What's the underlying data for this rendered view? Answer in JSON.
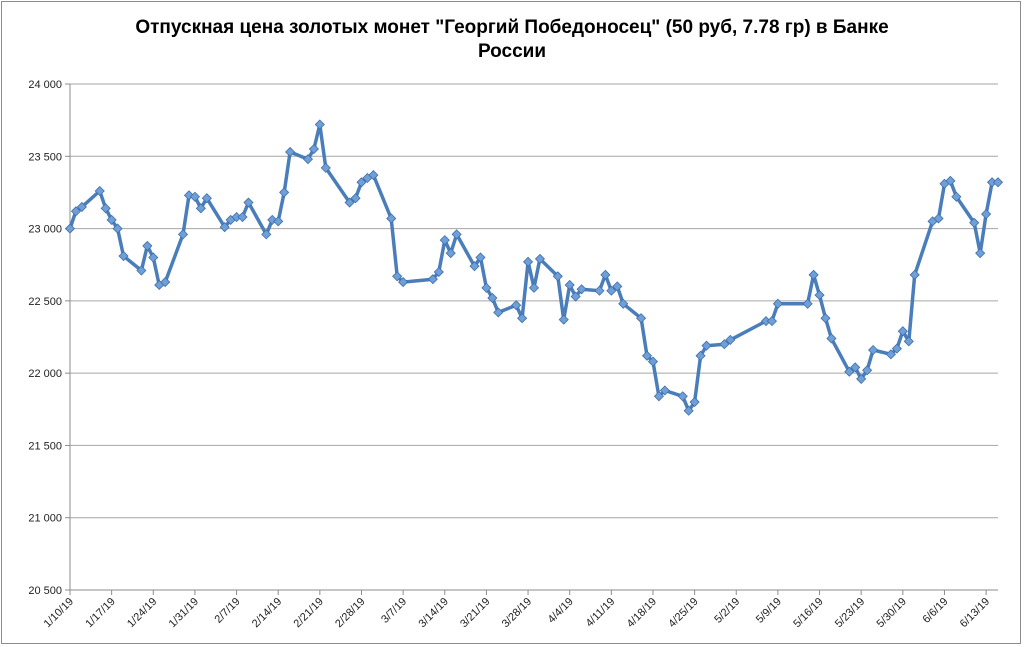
{
  "chart_data": {
    "type": "line",
    "title": "Отпускная цена золотых монет \"Георгий Победоносец\" (50 руб, 7.78 гр) в Банке России",
    "xlabel": "",
    "ylabel": "",
    "ylim": [
      20500,
      24000
    ],
    "yticks": [
      "20 500",
      "21 000",
      "21 500",
      "22 000",
      "22 500",
      "23 000",
      "23 500",
      "24 000"
    ],
    "yticks_values": [
      20500,
      21000,
      21500,
      22000,
      22500,
      23000,
      23500,
      24000
    ],
    "xticks": [
      "1/10/19",
      "1/17/19",
      "1/24/19",
      "1/31/19",
      "2/7/19",
      "2/14/19",
      "2/21/19",
      "2/28/19",
      "3/7/19",
      "3/14/19",
      "3/21/19",
      "3/28/19",
      "4/4/19",
      "4/11/19",
      "4/18/19",
      "4/25/19",
      "5/2/19",
      "5/9/19",
      "5/16/19",
      "5/23/19",
      "5/30/19",
      "6/6/19",
      "6/13/19"
    ],
    "grid": "horizontal",
    "legend": "none",
    "line_color": "#4a7ebb",
    "marker": "diamond",
    "marker_color": "#6f9fd8",
    "x_start": "1/10/19",
    "x_end": "6/15/19",
    "series": [
      {
        "name": "",
        "x": [
          "1/10/19",
          "1/11/19",
          "1/12/19",
          "1/15/19",
          "1/16/19",
          "1/17/19",
          "1/18/19",
          "1/19/19",
          "1/22/19",
          "1/23/19",
          "1/24/19",
          "1/25/19",
          "1/26/19",
          "1/29/19",
          "1/30/19",
          "1/31/19",
          "2/1/19",
          "2/2/19",
          "2/5/19",
          "2/6/19",
          "2/7/19",
          "2/8/19",
          "2/9/19",
          "2/12/19",
          "2/13/19",
          "2/14/19",
          "2/15/19",
          "2/16/19",
          "2/19/19",
          "2/20/19",
          "2/21/19",
          "2/22/19",
          "2/26/19",
          "2/27/19",
          "2/28/19",
          "3/1/19",
          "3/2/19",
          "3/5/19",
          "3/6/19",
          "3/7/19",
          "3/12/19",
          "3/13/19",
          "3/14/19",
          "3/15/19",
          "3/16/19",
          "3/19/19",
          "3/20/19",
          "3/21/19",
          "3/22/19",
          "3/23/19",
          "3/26/19",
          "3/27/19",
          "3/28/19",
          "3/29/19",
          "3/30/19",
          "4/2/19",
          "4/3/19",
          "4/4/19",
          "4/5/19",
          "4/6/19",
          "4/9/19",
          "4/10/19",
          "4/11/19",
          "4/12/19",
          "4/13/19",
          "4/16/19",
          "4/17/19",
          "4/18/19",
          "4/19/19",
          "4/20/19",
          "4/23/19",
          "4/24/19",
          "4/25/19",
          "4/26/19",
          "4/27/19",
          "4/30/19",
          "5/1/19",
          "5/7/19",
          "5/8/19",
          "5/9/19",
          "5/14/19",
          "5/15/19",
          "5/16/19",
          "5/17/19",
          "5/18/19",
          "5/21/19",
          "5/22/19",
          "5/23/19",
          "5/24/19",
          "5/25/19",
          "5/28/19",
          "5/29/19",
          "5/30/19",
          "5/31/19",
          "6/1/19",
          "6/4/19",
          "6/5/19",
          "6/6/19",
          "6/7/19",
          "6/8/19",
          "6/11/19",
          "6/12/19",
          "6/13/19",
          "6/14/19",
          "6/15/19"
        ],
        "y": [
          23000,
          23120,
          23150,
          23260,
          23140,
          23060,
          23000,
          22810,
          22710,
          22880,
          22800,
          22610,
          22630,
          22960,
          23230,
          23220,
          23140,
          23210,
          23010,
          23060,
          23080,
          23080,
          23180,
          22960,
          23060,
          23050,
          23250,
          23530,
          23480,
          23550,
          23720,
          23420,
          23180,
          23210,
          23320,
          23350,
          23370,
          23070,
          22670,
          22630,
          22650,
          22700,
          22920,
          22830,
          22960,
          22740,
          22800,
          22590,
          22520,
          22420,
          22470,
          22380,
          22770,
          22590,
          22790,
          22670,
          22370,
          22610,
          22530,
          22580,
          22570,
          22680,
          22570,
          22600,
          22480,
          22380,
          22120,
          22080,
          21840,
          21880,
          21840,
          21740,
          21800,
          22120,
          22190,
          22200,
          22230,
          22360,
          22360,
          22480,
          22480,
          22680,
          22540,
          22380,
          22240,
          22010,
          22040,
          21960,
          22020,
          22160,
          22130,
          22170,
          22290,
          22220,
          22680,
          23050,
          23070,
          23310,
          23330,
          23220,
          23040,
          22830,
          23100,
          23320,
          23320
        ]
      }
    ]
  }
}
